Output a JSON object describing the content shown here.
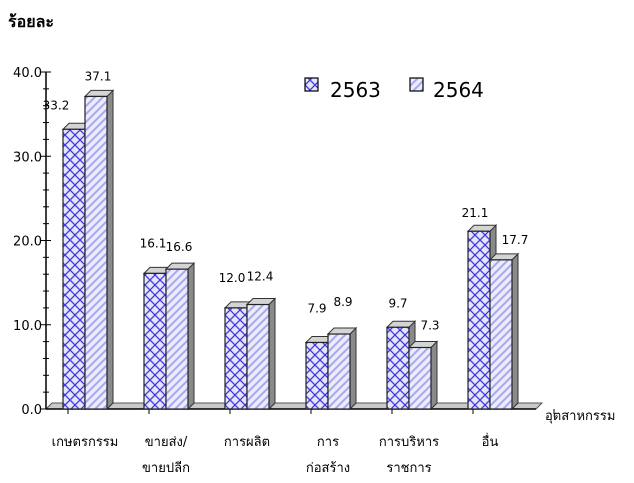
{
  "chart_data": {
    "type": "bar",
    "ylabel": "ร้อยละ",
    "xlabel": "อุตสาหกรรม",
    "ylim": [
      0,
      40
    ],
    "yticks": [
      "0.0",
      "10.0",
      "20.0",
      "30.0",
      "40.0"
    ],
    "categories": [
      [
        "เกษตรกรรม"
      ],
      [
        "ขายส่ง/",
        "ขายปลีก"
      ],
      [
        "การผลิต"
      ],
      [
        "การ",
        "ก่อสร้าง"
      ],
      [
        "การบริหาร",
        "ราชการ"
      ],
      [
        "อื่น"
      ]
    ],
    "series": [
      {
        "name": "2563",
        "values": [
          33.2,
          16.1,
          12.0,
          7.9,
          9.7,
          21.1
        ],
        "labels": [
          "33.2",
          "16.1",
          "12.0",
          "7.9",
          "9.7",
          "21.1"
        ]
      },
      {
        "name": "2564",
        "values": [
          37.1,
          16.6,
          12.4,
          8.9,
          7.3,
          17.7
        ],
        "labels": [
          "37.1",
          "16.6",
          "12.4",
          "8.9",
          "7.3",
          "17.7"
        ]
      }
    ],
    "legend_position": "top-right",
    "grid": false
  }
}
